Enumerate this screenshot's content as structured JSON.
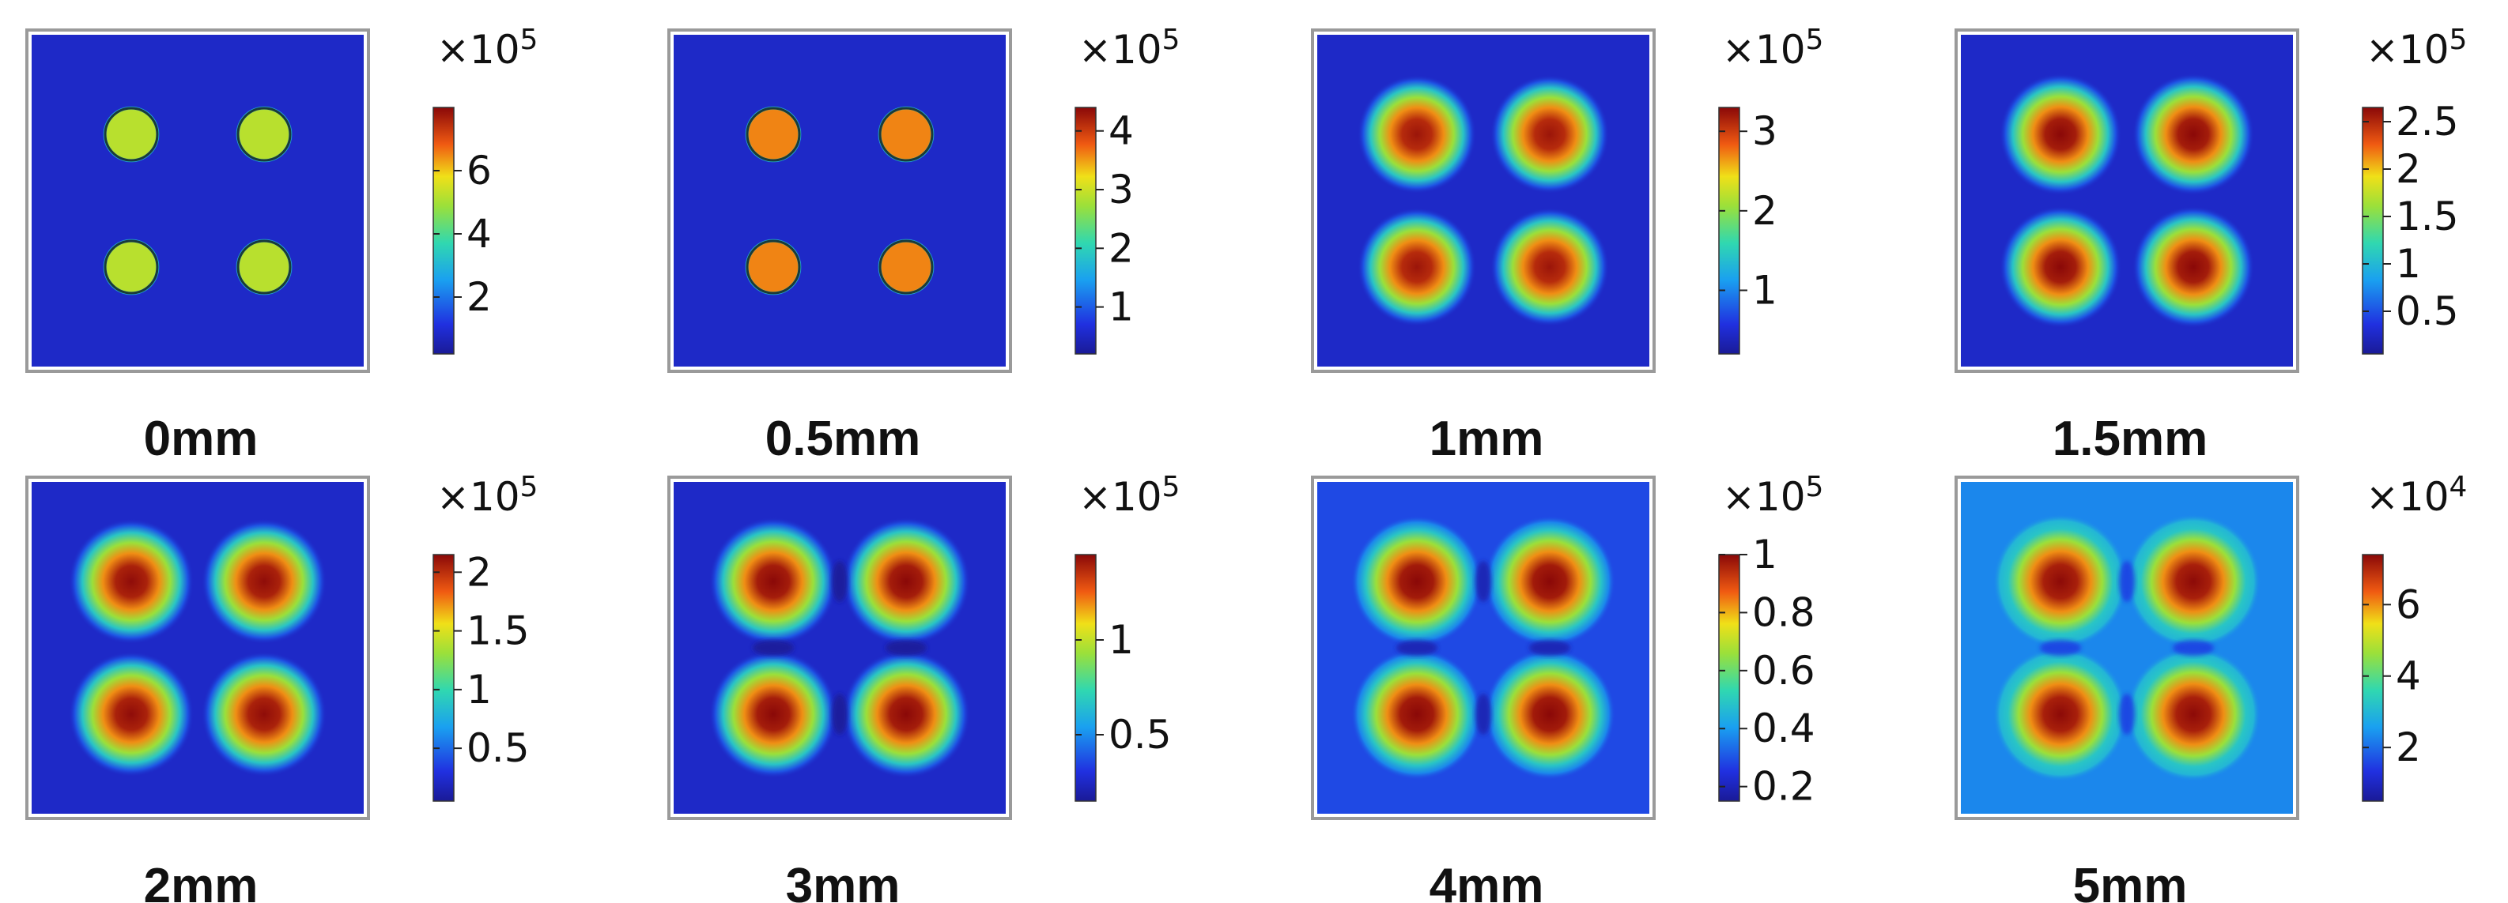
{
  "chart_data": {
    "type": "heatmap",
    "colormap": "rainbow (blue-cyan-green-yellow-red-darkred)",
    "description": "Eight 2D field maps, each with four circular hot spots arranged 2x2, shown at increasing distances",
    "panels": [
      {
        "label": "0mm",
        "multiplier_base": "×10",
        "multiplier_exp": "5",
        "ticks": [
          2,
          4,
          6
        ],
        "range": [
          0.2,
          8.0
        ],
        "spot_value": 5.2
      },
      {
        "label": "0.5mm",
        "multiplier_base": "×10",
        "multiplier_exp": "5",
        "ticks": [
          1,
          2,
          3,
          4
        ],
        "range": [
          0.2,
          4.4
        ],
        "spot_value": 3.6
      },
      {
        "label": "1mm",
        "multiplier_base": "×10",
        "multiplier_exp": "5",
        "ticks": [
          1,
          2,
          3
        ],
        "range": [
          0.2,
          3.3
        ],
        "spot_value": 3.1
      },
      {
        "label": "1.5mm",
        "multiplier_base": "×10",
        "multiplier_exp": "5",
        "ticks": [
          0.5,
          1,
          1.5,
          2,
          2.5
        ],
        "range": [
          0.05,
          2.65
        ],
        "spot_value": 2.55
      },
      {
        "label": "2mm",
        "multiplier_base": "×10",
        "multiplier_exp": "5",
        "ticks": [
          0.5,
          1,
          1.5,
          2
        ],
        "range": [
          0.05,
          2.15
        ],
        "spot_value": 2.05
      },
      {
        "label": "3mm",
        "multiplier_base": "×10",
        "multiplier_exp": "5",
        "ticks": [
          0.5,
          1
        ],
        "range": [
          0.15,
          1.45
        ],
        "spot_value": 1.4
      },
      {
        "label": "4mm",
        "multiplier_base": "×10",
        "multiplier_exp": "5",
        "ticks": [
          0.2,
          0.4,
          0.6,
          0.8,
          1
        ],
        "range": [
          0.15,
          1.0
        ],
        "spot_value": 0.97
      },
      {
        "label": "5mm",
        "multiplier_base": "×10",
        "multiplier_exp": "4",
        "ticks": [
          2,
          4,
          6
        ],
        "range": [
          0.5,
          7.4
        ],
        "spot_value": 7.1
      }
    ]
  }
}
